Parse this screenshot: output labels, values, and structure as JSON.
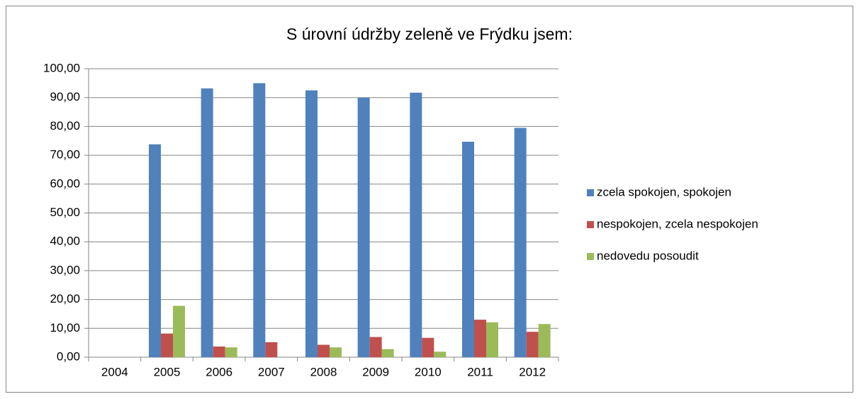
{
  "chart_data": {
    "type": "bar",
    "title": "S úrovní údržby zeleně ve Frýdku jsem:",
    "categories": [
      "2004",
      "2005",
      "2006",
      "2007",
      "2008",
      "2009",
      "2010",
      "2011",
      "2012"
    ],
    "series": [
      {
        "name": "zcela spokojen, spokojen",
        "color": "#4f81bd",
        "values": [
          null,
          73.8,
          93.2,
          95.0,
          92.5,
          90.0,
          91.7,
          74.7,
          79.5
        ]
      },
      {
        "name": "nespokojen, zcela nespokojen",
        "color": "#c0504d",
        "values": [
          null,
          8.2,
          3.7,
          5.2,
          4.3,
          7.0,
          6.7,
          13.0,
          8.8
        ]
      },
      {
        "name": "nedovedu posoudit",
        "color": "#9bbb59",
        "values": [
          null,
          17.8,
          3.4,
          null,
          3.4,
          2.8,
          1.9,
          12.1,
          11.5
        ]
      }
    ],
    "ylim": [
      0,
      100
    ],
    "yticks": [
      {
        "value": 0,
        "label": "0,00"
      },
      {
        "value": 10,
        "label": "10,00"
      },
      {
        "value": 20,
        "label": "20,00"
      },
      {
        "value": 30,
        "label": "30,00"
      },
      {
        "value": 40,
        "label": "40,00"
      },
      {
        "value": 50,
        "label": "50,00"
      },
      {
        "value": 60,
        "label": "60,00"
      },
      {
        "value": 70,
        "label": "70,00"
      },
      {
        "value": 80,
        "label": "80,00"
      },
      {
        "value": 90,
        "label": "90,00"
      },
      {
        "value": 100,
        "label": "100,00"
      }
    ],
    "grid": true,
    "legend": "right"
  }
}
